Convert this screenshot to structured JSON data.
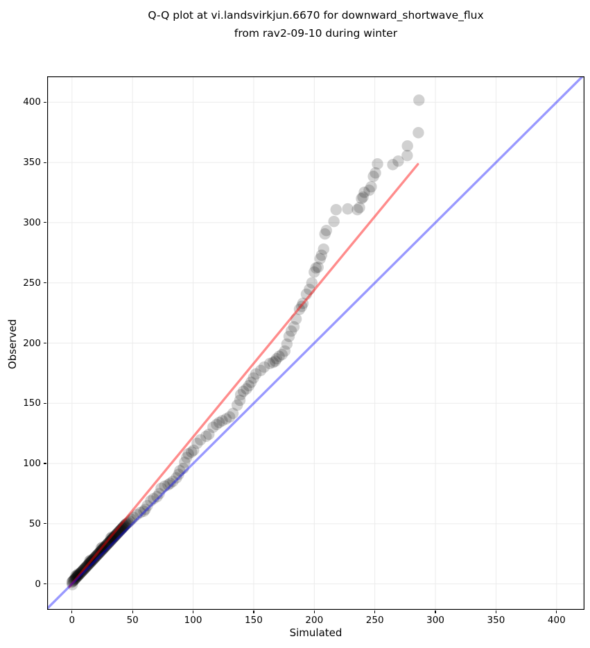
{
  "figure": {
    "title_line1": "Q-Q plot at vi.landsvirkjun.6670 for downward_shortwave_flux",
    "title_line2": "from rav2-09-10 during winter"
  },
  "chart_data": {
    "type": "scatter",
    "title": "Q-Q plot at vi.landsvirkjun.6670 for downward_shortwave_flux from rav2-09-10 during winter",
    "xlabel": "Simulated",
    "ylabel": "Observed",
    "xlim": [
      -20.5,
      423
    ],
    "ylim": [
      -21.5,
      421.5
    ],
    "xticks": [
      0,
      50,
      100,
      150,
      200,
      250,
      300,
      350,
      400
    ],
    "yticks": [
      0,
      50,
      100,
      150,
      200,
      250,
      300,
      350,
      400
    ],
    "grid": true,
    "grid_color": "#ebebeb",
    "spine_color": "#000000",
    "background": "#ffffff",
    "marker": {
      "color": "#000000",
      "opacity": 0.18,
      "radius": 8.2
    },
    "identity_line": {
      "color": "#0000ff",
      "opacity": 0.4,
      "width": 3.4,
      "x1": -20.5,
      "y1": -20.5,
      "x2": 423,
      "y2": 423
    },
    "fit_line": {
      "color": "#ff0000",
      "opacity": 0.45,
      "width": 3.4,
      "x1": -2,
      "y1": -2.4,
      "x2": 285.5,
      "y2": 348.5
    },
    "points": [
      [
        0.3,
        -0.5
      ],
      [
        0,
        1.5
      ],
      [
        0.5,
        2
      ],
      [
        1,
        2.6
      ],
      [
        1.5,
        3.1
      ],
      [
        2,
        3.7
      ],
      [
        2.5,
        4.2
      ],
      [
        3,
        4.7
      ],
      [
        3.5,
        5.3
      ],
      [
        4,
        5.8
      ],
      [
        4.5,
        6.4
      ],
      [
        5,
        6.9
      ],
      [
        5.5,
        7.4
      ],
      [
        6,
        8
      ],
      [
        6.5,
        8.5
      ],
      [
        7,
        9.1
      ],
      [
        7.5,
        9.6
      ],
      [
        8,
        10.1
      ],
      [
        8.5,
        10.7
      ],
      [
        9,
        11.2
      ],
      [
        9.5,
        11.8
      ],
      [
        10,
        12.3
      ],
      [
        10.5,
        12.8
      ],
      [
        11,
        13.4
      ],
      [
        11.5,
        13.9
      ],
      [
        12,
        14.5
      ],
      [
        12.5,
        15
      ],
      [
        13,
        15.5
      ],
      [
        13.5,
        16.1
      ],
      [
        14,
        16.6
      ],
      [
        14.5,
        17.2
      ],
      [
        15,
        17.7
      ],
      [
        15.5,
        18.2
      ],
      [
        16,
        18.8
      ],
      [
        16.5,
        19.3
      ],
      [
        17,
        19.9
      ],
      [
        17.5,
        20.4
      ],
      [
        18,
        20.9
      ],
      [
        18.5,
        21.5
      ],
      [
        19,
        22
      ],
      [
        19.5,
        22.6
      ],
      [
        20,
        23.1
      ],
      [
        20.5,
        23.6
      ],
      [
        21,
        24.2
      ],
      [
        21.5,
        24.7
      ],
      [
        22,
        25.3
      ],
      [
        22.5,
        25.8
      ],
      [
        23,
        26.3
      ],
      [
        23.5,
        26.9
      ],
      [
        24,
        27.4
      ],
      [
        24.5,
        28
      ],
      [
        25,
        28.5
      ],
      [
        25.5,
        29
      ],
      [
        26,
        29.6
      ],
      [
        26.5,
        30.1
      ],
      [
        27,
        30.7
      ],
      [
        27.5,
        31.2
      ],
      [
        28,
        31.7
      ],
      [
        28.5,
        32.3
      ],
      [
        29,
        32.8
      ],
      [
        29.5,
        33.4
      ],
      [
        30,
        33.9
      ],
      [
        30.5,
        34.4
      ],
      [
        31,
        35
      ],
      [
        31.5,
        35.5
      ],
      [
        32,
        36.1
      ],
      [
        32.5,
        36.6
      ],
      [
        33,
        37.1
      ],
      [
        33.5,
        37.7
      ],
      [
        34,
        38.2
      ],
      [
        34.5,
        38.8
      ],
      [
        35,
        39.3
      ],
      [
        35.5,
        39.8
      ],
      [
        36,
        40.4
      ],
      [
        36.5,
        40.9
      ],
      [
        37,
        41.5
      ],
      [
        37.5,
        42
      ],
      [
        38,
        42.5
      ],
      [
        38.5,
        43.1
      ],
      [
        39,
        43.6
      ],
      [
        39.5,
        44.2
      ],
      [
        40,
        44.7
      ],
      [
        40.5,
        45.2
      ],
      [
        41,
        45.8
      ],
      [
        41.5,
        46.3
      ],
      [
        42,
        46.9
      ],
      [
        42.5,
        47.4
      ],
      [
        43,
        47.9
      ],
      [
        43.5,
        48.5
      ],
      [
        44,
        49
      ],
      [
        44.5,
        49.6
      ],
      [
        45,
        50.1
      ],
      [
        3,
        6.5
      ],
      [
        4,
        7.2
      ],
      [
        5,
        8.3
      ],
      [
        14.5,
        19
      ],
      [
        15.5,
        19.8
      ],
      [
        24,
        29.5
      ],
      [
        25,
        30.5
      ],
      [
        32,
        38
      ],
      [
        33,
        39
      ],
      [
        46.2,
        50.8
      ],
      [
        47.6,
        52.1
      ],
      [
        49,
        53.6
      ],
      [
        50.8,
        55.3
      ],
      [
        53.6,
        57.6
      ],
      [
        56.5,
        59.3
      ],
      [
        59.3,
        60.4
      ],
      [
        60.5,
        62
      ],
      [
        62.2,
        65
      ],
      [
        65,
        69
      ],
      [
        67.3,
        70.8
      ],
      [
        70.2,
        72.5
      ],
      [
        72,
        75
      ],
      [
        73.6,
        79.4
      ],
      [
        76.5,
        81.2
      ],
      [
        79.3,
        82.3
      ],
      [
        81,
        83.5
      ],
      [
        83.3,
        85.2
      ],
      [
        86.2,
        88.1
      ],
      [
        88,
        91
      ],
      [
        89,
        94
      ],
      [
        91.9,
        96
      ],
      [
        93,
        101
      ],
      [
        94.7,
        105
      ],
      [
        96,
        108
      ],
      [
        98.7,
        109.5
      ],
      [
        100.4,
        111
      ],
      [
        103.3,
        116.8
      ],
      [
        106.1,
        119.7
      ],
      [
        110.7,
        122.6
      ],
      [
        113,
        124.3
      ],
      [
        116.4,
        130.1
      ],
      [
        119.3,
        132.4
      ],
      [
        121.5,
        134.1
      ],
      [
        124,
        135.5
      ],
      [
        127.2,
        137
      ],
      [
        130.1,
        138.7
      ],
      [
        132.9,
        141.6
      ],
      [
        136.4,
        148.5
      ],
      [
        138.6,
        152.5
      ],
      [
        139.2,
        157.1
      ],
      [
        141.5,
        160
      ],
      [
        144,
        162
      ],
      [
        146,
        164.6
      ],
      [
        147.8,
        167.5
      ],
      [
        149.8,
        171
      ],
      [
        151.8,
        174.4
      ],
      [
        155.8,
        177.3
      ],
      [
        158.6,
        180.1
      ],
      [
        163.2,
        183
      ],
      [
        166,
        184
      ],
      [
        167.8,
        185
      ],
      [
        168.9,
        187
      ],
      [
        171,
        189
      ],
      [
        173.4,
        190.5
      ],
      [
        175.7,
        193.4
      ],
      [
        177.4,
        199.2
      ],
      [
        179.2,
        205.5
      ],
      [
        181,
        210
      ],
      [
        183.2,
        213.5
      ],
      [
        185,
        220
      ],
      [
        187.8,
        228
      ],
      [
        189.6,
        230.5
      ],
      [
        190.6,
        233
      ],
      [
        193.5,
        240.6
      ],
      [
        196,
        244.6
      ],
      [
        198,
        250
      ],
      [
        200,
        259
      ],
      [
        201.4,
        262.4
      ],
      [
        203.1,
        263
      ],
      [
        204.8,
        270
      ],
      [
        206,
        273
      ],
      [
        207.7,
        278
      ],
      [
        208.8,
        290.6
      ],
      [
        210,
        293.5
      ],
      [
        216.2,
        301
      ],
      [
        218,
        310.8
      ],
      [
        227.6,
        311.4
      ],
      [
        235.6,
        310.8
      ],
      [
        237.3,
        312.5
      ],
      [
        239,
        320
      ],
      [
        240.2,
        321.2
      ],
      [
        241.3,
        325.2
      ],
      [
        245.3,
        326.9
      ],
      [
        247,
        329.8
      ],
      [
        248.8,
        338.4
      ],
      [
        250.5,
        341.3
      ],
      [
        252.2,
        348.8
      ],
      [
        264.8,
        348.2
      ],
      [
        269.3,
        351.1
      ],
      [
        276.7,
        355.7
      ],
      [
        276.9,
        363.7
      ],
      [
        285.9,
        374.7
      ],
      [
        286.4,
        401.7
      ]
    ]
  }
}
